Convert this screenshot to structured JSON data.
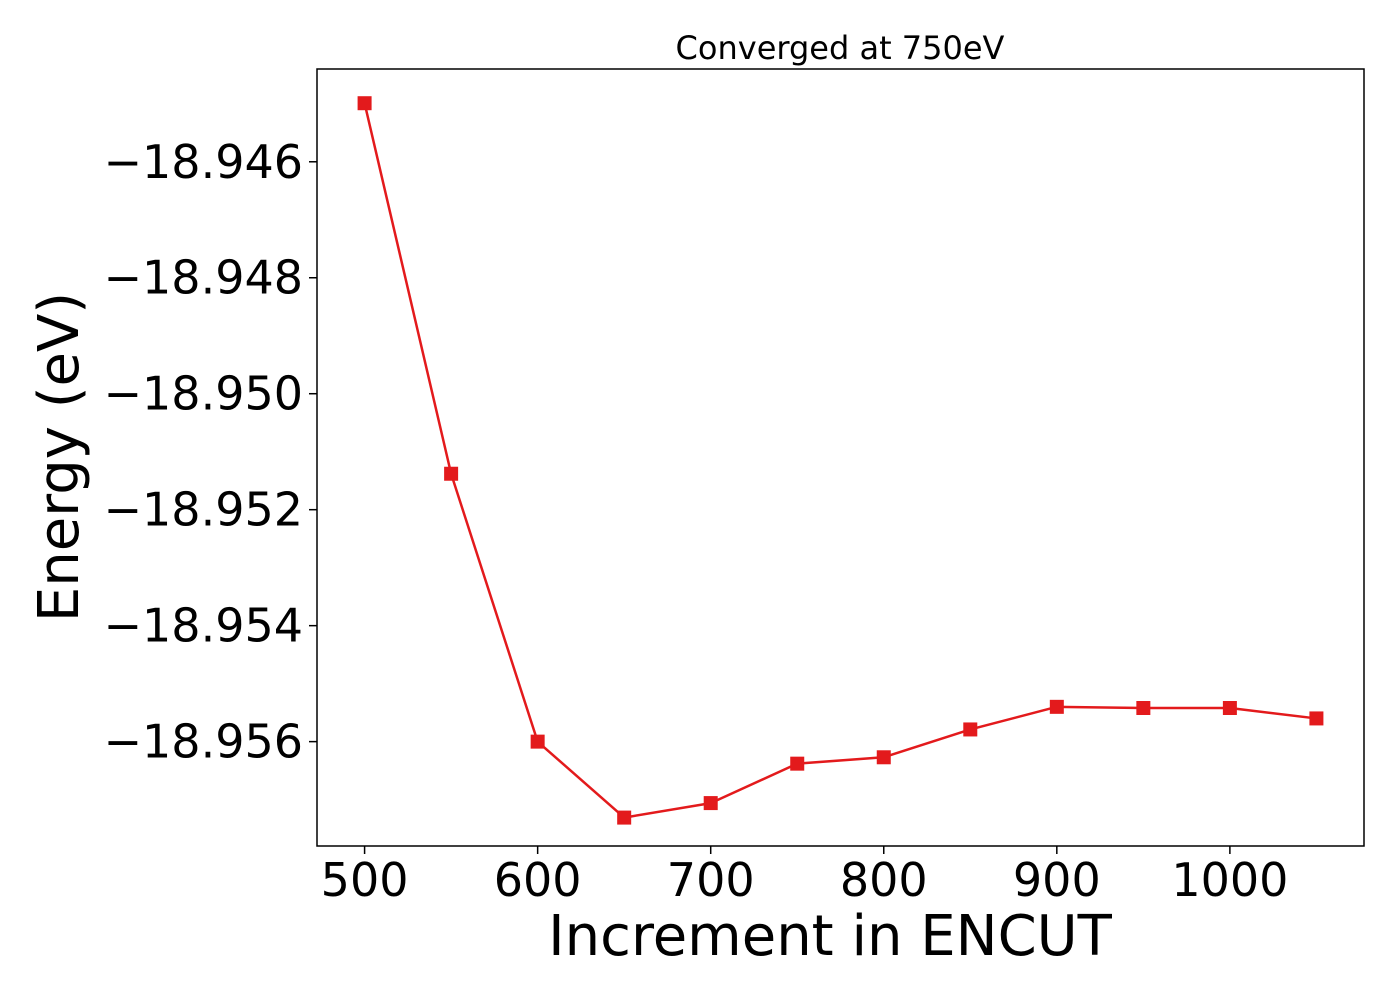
{
  "chart_data": {
    "type": "line",
    "title": "Converged at 750eV",
    "xlabel": "Increment in ENCUT",
    "ylabel": "Energy (eV)",
    "x": [
      500,
      550,
      600,
      650,
      700,
      750,
      800,
      850,
      900,
      950,
      1000,
      1050
    ],
    "series": [
      {
        "values": [
          -18.94499,
          -18.95138,
          -18.956,
          -18.95731,
          -18.95706,
          -18.95638,
          -18.95627,
          -18.95579,
          -18.9554,
          -18.95542,
          -18.95542,
          -18.9556
        ],
        "color": "#e31a1c",
        "marker": "square"
      }
    ],
    "xlim": [
      472.5,
      1077.5
    ],
    "ylim": [
      -18.9578,
      -18.9444
    ],
    "xticks": [
      500,
      600,
      700,
      800,
      900,
      1000
    ],
    "xtick_labels": [
      "500",
      "600",
      "700",
      "800",
      "900",
      "1000"
    ],
    "yticks": [
      -18.946,
      -18.948,
      -18.95,
      -18.952,
      -18.954,
      -18.956
    ],
    "ytick_labels": [
      "−18.946",
      "−18.948",
      "−18.950",
      "−18.952",
      "−18.954",
      "−18.956"
    ],
    "grid": false,
    "legend": "none"
  }
}
